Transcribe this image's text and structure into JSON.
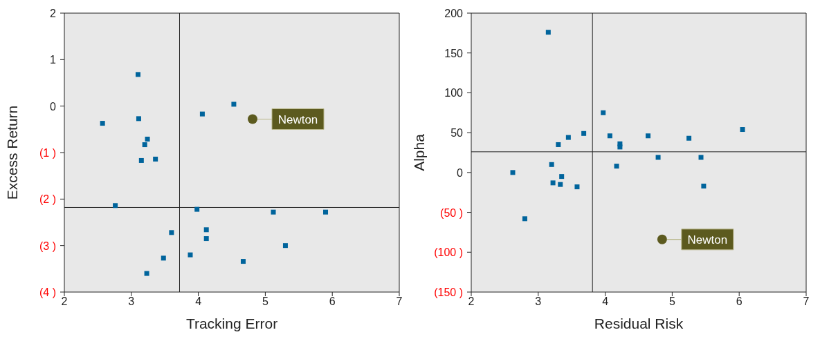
{
  "chart_data": [
    {
      "type": "scatter",
      "xlabel": "Tracking Error",
      "ylabel": "Excess Return",
      "xlim": [
        2,
        7
      ],
      "xticks": [
        2,
        3,
        4,
        5,
        6,
        7
      ],
      "ylim": [
        -4,
        2
      ],
      "yticks": [
        {
          "value": -4,
          "label": "(4 )"
        },
        {
          "value": -3,
          "label": "(3 )"
        },
        {
          "value": -2,
          "label": "(2 )"
        },
        {
          "value": -1,
          "label": "(1 )"
        },
        0,
        1,
        2
      ],
      "grid": false,
      "legend": false,
      "ref_lines": [
        {
          "axis": "x",
          "value": 3.72,
          "color": "#222222"
        },
        {
          "axis": "y",
          "value": -2.18,
          "color": "#222222"
        }
      ],
      "series": [
        {
          "color": "#00649c",
          "marker": "square",
          "x": [
            3.1,
            2.57,
            3.11,
            3.24,
            3.2,
            3.15,
            3.36,
            2.76,
            4.06,
            4.53,
            3.98,
            5.12,
            5.9,
            4.12,
            4.12,
            3.6,
            5.3,
            3.48,
            3.88,
            4.67,
            3.23
          ],
          "values": [
            0.68,
            -0.37,
            -0.27,
            -0.71,
            -0.83,
            -1.17,
            -1.14,
            -2.14,
            -0.17,
            0.04,
            -2.22,
            -2.28,
            -2.28,
            -2.66,
            -2.85,
            -2.72,
            -3.0,
            -3.27,
            -3.2,
            -3.34,
            -3.6
          ]
        },
        {
          "name": "Newton",
          "color": "#5c5a1f",
          "marker": "circle",
          "x": [
            4.81
          ],
          "values": [
            -0.28
          ]
        }
      ]
    },
    {
      "type": "scatter",
      "xlabel": "Residual Risk",
      "ylabel": "Alpha",
      "xlim": [
        2,
        7
      ],
      "xticks": [
        2,
        3,
        4,
        5,
        6,
        7
      ],
      "ylim": [
        -150,
        200
      ],
      "yticks": [
        {
          "value": -150,
          "label": "(150 )"
        },
        {
          "value": -100,
          "label": "(100 )"
        },
        {
          "value": -50,
          "label": "(50 )"
        },
        0,
        50,
        100,
        150,
        200
      ],
      "grid": false,
      "legend": false,
      "ref_lines": [
        {
          "axis": "x",
          "value": 3.81,
          "color": "#222222"
        },
        {
          "axis": "y",
          "value": 26,
          "color": "#222222"
        }
      ],
      "series": [
        {
          "color": "#00649c",
          "marker": "square",
          "x": [
            3.15,
            2.62,
            2.8,
            3.2,
            3.22,
            3.3,
            3.33,
            3.35,
            3.45,
            3.58,
            3.68,
            3.97,
            4.07,
            4.17,
            4.22,
            4.22,
            4.64,
            4.79,
            5.25,
            5.43,
            5.47,
            6.05
          ],
          "values": [
            176,
            0,
            -58,
            10,
            -13,
            35,
            -15,
            -5,
            44,
            -18,
            49,
            75,
            46,
            8,
            36,
            32,
            46,
            19,
            43,
            19,
            -17,
            54
          ]
        },
        {
          "name": "Newton",
          "color": "#5c5a1f",
          "marker": "circle",
          "x": [
            4.85
          ],
          "values": [
            -84
          ]
        }
      ]
    }
  ]
}
